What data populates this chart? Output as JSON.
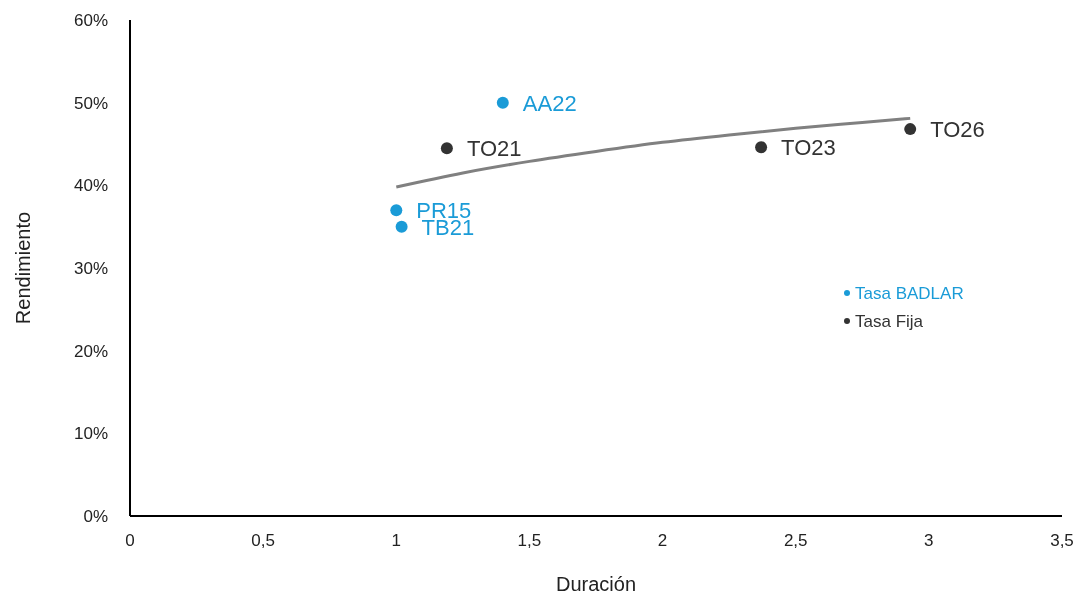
{
  "chart_data": {
    "type": "scatter",
    "xlabel": "Duración",
    "ylabel": "Rendimiento",
    "xlim": [
      0,
      3.5
    ],
    "xticks": [
      0,
      {
        "value": 0.5,
        "label": "0,5"
      },
      1,
      {
        "value": 1.5,
        "label": "1,5"
      },
      2,
      {
        "value": 2.5,
        "label": "2,5"
      },
      3,
      {
        "value": 3.5,
        "label": "3,5"
      }
    ],
    "ylim": [
      0,
      60
    ],
    "yticks": [
      {
        "value": 0,
        "label": "0%"
      },
      {
        "value": 10,
        "label": "10%"
      },
      {
        "value": 20,
        "label": "20%"
      },
      {
        "value": 30,
        "label": "30%"
      },
      {
        "value": 40,
        "label": "40%"
      },
      {
        "value": 50,
        "label": "50%"
      },
      {
        "value": 60,
        "label": "60%"
      }
    ],
    "grid": false,
    "legend": "right",
    "marker": "circle",
    "series": [
      {
        "name": "Tasa BADLAR",
        "color": "#1a9bd7",
        "x": [
          1.4,
          1.0,
          1.02
        ],
        "values": [
          50,
          37,
          35
        ]
      },
      {
        "name": "Tasa Fija",
        "color": "#333333",
        "x": [
          1.19,
          2.37,
          2.93
        ],
        "values": [
          44.5,
          44.6,
          46.8
        ]
      },
      {
        "type": "line",
        "color": "#808080",
        "marker": "none",
        "x": [
          1.0,
          1.25,
          1.5,
          1.75,
          2.0,
          2.25,
          2.5,
          2.75,
          2.93
        ],
        "values": [
          39.8,
          41.5,
          42.9,
          44.1,
          45.2,
          46.1,
          46.9,
          47.6,
          48.1
        ]
      }
    ],
    "annotations": [
      {
        "text": "AA22",
        "x": 1.4,
        "y": 50
      },
      {
        "text": "PR15",
        "x": 1.0,
        "y": 37
      },
      {
        "text": "TB21",
        "x": 1.02,
        "y": 35
      },
      {
        "text": "TO21",
        "x": 1.19,
        "y": 44.5
      },
      {
        "text": "TO23",
        "x": 2.37,
        "y": 44.6
      },
      {
        "text": "TO26",
        "x": 2.93,
        "y": 46.8
      }
    ]
  }
}
